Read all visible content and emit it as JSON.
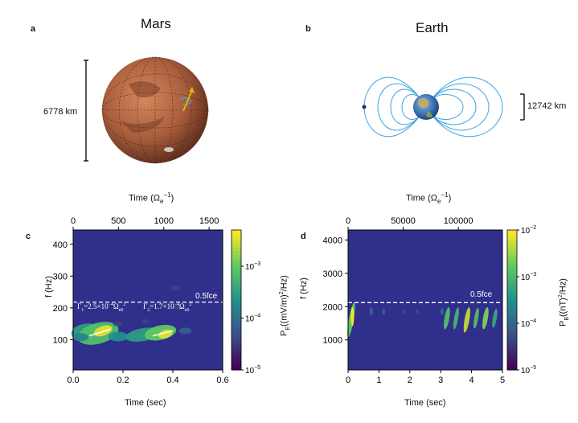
{
  "panels": {
    "a": {
      "label": "a",
      "title": "Mars",
      "scale": "6778 km"
    },
    "b": {
      "label": "b",
      "title": "Earth",
      "scale": "12742 km"
    }
  },
  "chart_data": [
    {
      "panel": "c",
      "type": "heatmap",
      "title": "",
      "xlabel": "Time (sec)",
      "x_top_label": "Time (Ω_e^-1)",
      "ylabel": "f (Hz)",
      "xlim": [
        0,
        0.6
      ],
      "x_top_lim": [
        0,
        1650
      ],
      "ylim": [
        5,
        445
      ],
      "x_ticks": [
        "0.0",
        "0.2",
        "0.4",
        "0.6"
      ],
      "x_top_ticks": [
        "0",
        "500",
        "1000",
        "1500"
      ],
      "y_ticks": [
        "100",
        "200",
        "300",
        "400"
      ],
      "colorbar": {
        "label": "P_E((mV/m)^2/Hz)",
        "scale": "log",
        "range": [
          1e-05,
          0.005
        ],
        "ticks": [
          "10^-5",
          "10^-4",
          "10^-3"
        ]
      },
      "annotations": [
        {
          "text": "0.5fce",
          "y": 218
        },
        {
          "text": "Γ1=2.5×10^-4 Ω_e0^2",
          "x": 0.08,
          "y": 168
        },
        {
          "text": "Γ2=1.7×10^-4 Ω_e0^2",
          "x": 0.35,
          "y": 168
        }
      ],
      "background_color": "#312f8c",
      "cmap": "viridis"
    },
    {
      "panel": "d",
      "type": "heatmap",
      "title": "",
      "xlabel": "Time (sec)",
      "x_top_label": "Time (Ω_e^-1)",
      "ylabel": "f (Hz)",
      "xlim": [
        0,
        5
      ],
      "x_top_lim": [
        0,
        140000
      ],
      "ylim": [
        100,
        4300
      ],
      "x_ticks": [
        "0",
        "1",
        "2",
        "3",
        "4",
        "5"
      ],
      "x_top_ticks": [
        "0",
        "50000",
        "100000"
      ],
      "y_ticks": [
        "1000",
        "2000",
        "3000",
        "4000"
      ],
      "colorbar": {
        "label": "P_B((nT)^2/Hz)",
        "scale": "log",
        "range": [
          1e-05,
          0.01
        ],
        "ticks": [
          "10^-5",
          "10^-4",
          "10^-3",
          "10^-2"
        ]
      },
      "annotations": [
        {
          "text": "0.5fce",
          "y": 2120
        }
      ],
      "background_color": "#312f8c",
      "cmap": "viridis"
    }
  ],
  "text": {
    "c_label": "c",
    "d_label": "d",
    "top_c": "Time (Ω",
    "top_d": "Time (Ω",
    "sub_e": "e",
    "sup_m1": "−1",
    "ylabel_c": "f (Hz)",
    "ylabel_d": "f (Hz)",
    "xlabel_c": "Time (sec)",
    "xlabel_d": "Time (sec)",
    "fce": "0.5fce",
    "gamma1": "Γ",
    "gamma1_sub": "1",
    "gamma1_val": "=2.5×10",
    "gamma1_exp": "−4",
    "gamma2": "Γ",
    "gamma2_sub": "2",
    "gamma2_val": "=1.7×10",
    "gamma2_exp": "−4",
    "omega": "Ω",
    "omega_sub": "e0",
    "omega_sup": "2",
    "pe_label": "P",
    "pe_sub": "E",
    "pe_rest": "((mV/m)",
    "pe_sup": "2",
    "pe_end": "/Hz)",
    "pb_label": "P",
    "pb_sub": "B",
    "pb_rest": "((nT)",
    "pb_sup": "2",
    "pb_end": "/Hz)"
  },
  "colors": {
    "background": "#312f8c",
    "field_line": "#3ea3e0",
    "dashed": "#ffffff",
    "mars": "#b86b48",
    "earth": "#4a7fc0",
    "arrow": "#e6b400"
  }
}
